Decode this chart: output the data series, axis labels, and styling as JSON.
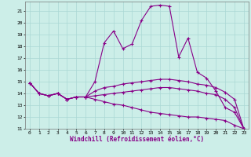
{
  "title": "",
  "xlabel": "Windchill (Refroidissement éolien,°C)",
  "background_color": "#cceee8",
  "line_color": "#880088",
  "grid_color": "#aad8d4",
  "xlim": [
    -0.5,
    23.5
  ],
  "ylim": [
    11,
    21.8
  ],
  "xticks": [
    0,
    1,
    2,
    3,
    4,
    5,
    6,
    7,
    8,
    9,
    10,
    11,
    12,
    13,
    14,
    15,
    16,
    17,
    18,
    19,
    20,
    21,
    22,
    23
  ],
  "yticks": [
    11,
    12,
    13,
    14,
    15,
    16,
    17,
    18,
    19,
    20,
    21
  ],
  "series": [
    [
      14.9,
      14.0,
      13.8,
      14.0,
      13.5,
      13.7,
      13.7,
      15.0,
      18.3,
      19.3,
      17.8,
      18.2,
      20.2,
      21.4,
      21.5,
      21.4,
      17.1,
      18.7,
      15.8,
      15.3,
      14.2,
      12.8,
      12.4,
      11.0
    ],
    [
      14.9,
      14.0,
      13.8,
      14.0,
      13.5,
      13.7,
      13.7,
      14.2,
      14.5,
      14.6,
      14.8,
      14.9,
      15.0,
      15.1,
      15.2,
      15.2,
      15.1,
      15.0,
      14.8,
      14.7,
      14.5,
      14.1,
      13.5,
      11.0
    ],
    [
      14.9,
      14.0,
      13.8,
      14.0,
      13.5,
      13.7,
      13.7,
      13.5,
      13.3,
      13.1,
      13.0,
      12.8,
      12.6,
      12.4,
      12.3,
      12.2,
      12.1,
      12.0,
      12.0,
      11.9,
      11.8,
      11.7,
      11.3,
      11.0
    ],
    [
      14.9,
      14.0,
      13.8,
      14.0,
      13.5,
      13.7,
      13.7,
      13.8,
      13.9,
      14.0,
      14.1,
      14.2,
      14.3,
      14.4,
      14.5,
      14.5,
      14.4,
      14.3,
      14.2,
      14.0,
      13.9,
      13.5,
      12.8,
      11.0
    ]
  ]
}
